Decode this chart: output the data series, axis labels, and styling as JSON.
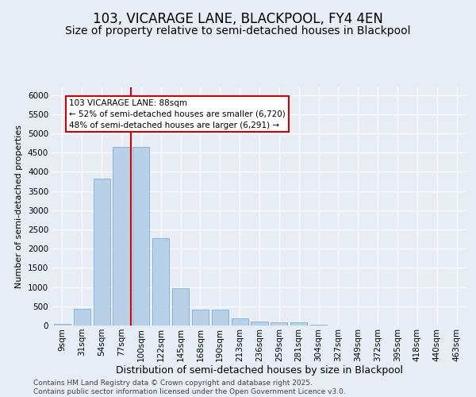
{
  "title1": "103, VICARAGE LANE, BLACKPOOL, FY4 4EN",
  "title2": "Size of property relative to semi-detached houses in Blackpool",
  "xlabel": "Distribution of semi-detached houses by size in Blackpool",
  "ylabel": "Number of semi-detached properties",
  "categories": [
    "9sqm",
    "31sqm",
    "54sqm",
    "77sqm",
    "100sqm",
    "122sqm",
    "145sqm",
    "168sqm",
    "190sqm",
    "213sqm",
    "236sqm",
    "259sqm",
    "281sqm",
    "304sqm",
    "327sqm",
    "349sqm",
    "372sqm",
    "395sqm",
    "418sqm",
    "440sqm",
    "463sqm"
  ],
  "values": [
    50,
    430,
    3820,
    4650,
    4650,
    2280,
    980,
    410,
    410,
    195,
    95,
    75,
    75,
    25,
    0,
    0,
    0,
    0,
    0,
    0,
    0
  ],
  "bar_color": "#b8d0e8",
  "bar_edge_color": "#7aadd4",
  "vline_color": "#cc0000",
  "annotation_text": "103 VICARAGE LANE: 88sqm\n← 52% of semi-detached houses are smaller (6,720)\n48% of semi-detached houses are larger (6,291) →",
  "annotation_box_color": "#ffffff",
  "annotation_box_edge": "#cc0000",
  "ylim": [
    0,
    6200
  ],
  "yticks": [
    0,
    500,
    1000,
    1500,
    2000,
    2500,
    3000,
    3500,
    4000,
    4500,
    5000,
    5500,
    6000
  ],
  "background_color": "#e8edf5",
  "grid_color": "#ffffff",
  "footer": "Contains HM Land Registry data © Crown copyright and database right 2025.\nContains public sector information licensed under the Open Government Licence v3.0.",
  "title1_fontsize": 12,
  "title2_fontsize": 10,
  "xlabel_fontsize": 9,
  "ylabel_fontsize": 8,
  "tick_fontsize": 7.5,
  "footer_fontsize": 6.5,
  "annot_fontsize": 7.5
}
